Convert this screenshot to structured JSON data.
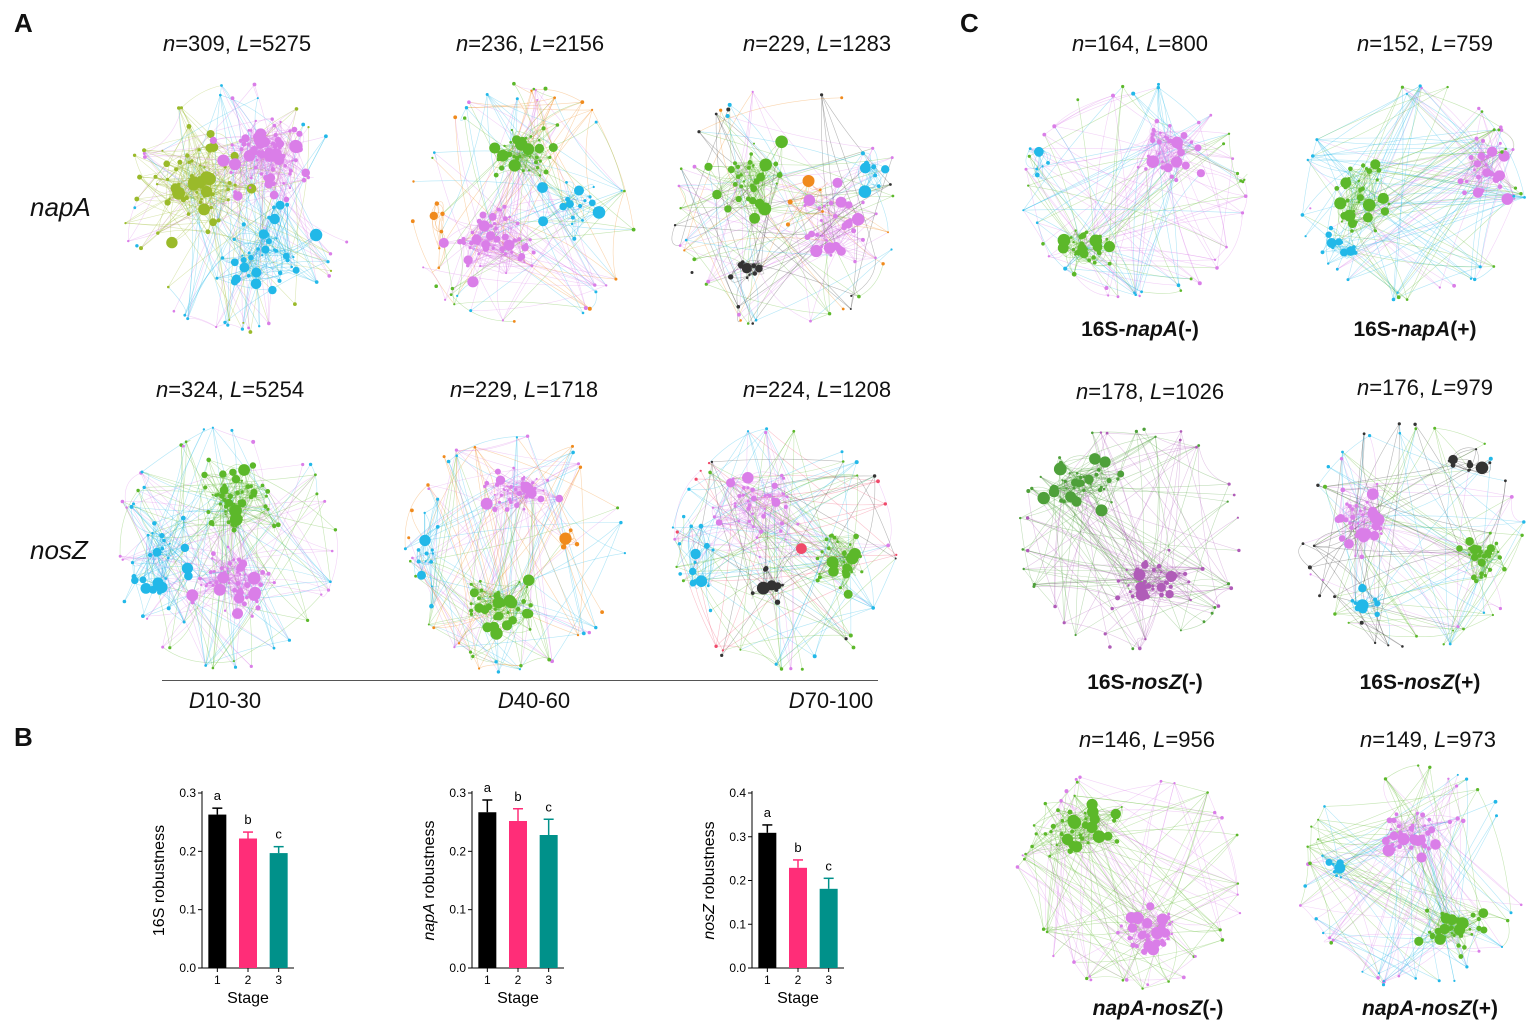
{
  "panels": {
    "a": "A",
    "b": "B",
    "c": "C"
  },
  "panel_a": {
    "row_labels": [
      "napA",
      "nosZ"
    ],
    "stage_labels": [
      {
        "d": "D",
        "rest": "10-30"
      },
      {
        "d": "D",
        "rest": "40-60"
      },
      {
        "d": "D",
        "rest": "70-100"
      }
    ],
    "networks": [
      {
        "n": "309",
        "L": "5275",
        "colors": [
          "#9aba2a",
          "#da7ee8",
          "#22b8e8"
        ]
      },
      {
        "n": "236",
        "L": "2156",
        "colors": [
          "#5cb82a",
          "#da7ee8",
          "#22b8e8",
          "#f08a1c"
        ]
      },
      {
        "n": "229",
        "L": "1283",
        "colors": [
          "#5cb82a",
          "#da7ee8",
          "#22b8e8",
          "#333333",
          "#f08a1c"
        ]
      },
      {
        "n": "324",
        "L": "5254",
        "colors": [
          "#5cb82a",
          "#da7ee8",
          "#22b8e8"
        ]
      },
      {
        "n": "229",
        "L": "1718",
        "colors": [
          "#da7ee8",
          "#5cb82a",
          "#22b8e8",
          "#f08a1c"
        ]
      },
      {
        "n": "224",
        "L": "1208",
        "colors": [
          "#da7ee8",
          "#5cb82a",
          "#22b8e8",
          "#333333",
          "#f04a6a"
        ]
      }
    ]
  },
  "panel_c": {
    "networks": [
      {
        "n": "164",
        "L": "800",
        "prefix": "16S-",
        "gene": "napA",
        "suffix": "(-)",
        "colors": [
          "#da7ee8",
          "#5cb82a",
          "#22b8e8"
        ]
      },
      {
        "n": "152",
        "L": "759",
        "prefix": "16S-",
        "gene": "napA",
        "suffix": "(+)",
        "colors": [
          "#5cb82a",
          "#da7ee8",
          "#22b8e8"
        ]
      },
      {
        "n": "178",
        "L": "1026",
        "prefix": "16S-",
        "gene": "nosZ",
        "suffix": "(-)",
        "colors": [
          "#4ea03a",
          "#b05cb8"
        ]
      },
      {
        "n": "176",
        "L": "979",
        "prefix": "16S-",
        "gene": "nosZ",
        "suffix": "(+)",
        "colors": [
          "#da7ee8",
          "#5cb82a",
          "#22b8e8",
          "#333333"
        ]
      },
      {
        "n": "146",
        "L": "956",
        "prefix": "",
        "gene": "napA-nosZ",
        "suffix": "(-)",
        "colors": [
          "#5cb82a",
          "#da7ee8"
        ]
      },
      {
        "n": "149",
        "L": "973",
        "prefix": "",
        "gene": "napA-nosZ",
        "suffix": "(+)",
        "colors": [
          "#da7ee8",
          "#5cb82a",
          "#22b8e8"
        ]
      }
    ]
  },
  "chart_data": [
    {
      "type": "bar",
      "ylabel_prefix": "16S",
      "ylabel_italic": "",
      "ylabel_suffix": " robustness",
      "xlabel": "Stage",
      "categories": [
        "1",
        "2",
        "3"
      ],
      "values": [
        0.263,
        0.222,
        0.197
      ],
      "errors": [
        0.011,
        0.011,
        0.011
      ],
      "letters": [
        "a",
        "b",
        "c"
      ],
      "colors": [
        "#000000",
        "#ff2d78",
        "#00918a"
      ],
      "ylim": [
        0,
        0.3
      ],
      "yticks": [
        "0.0",
        "0.1",
        "0.2",
        "0.3"
      ],
      "ytick_values": [
        0,
        0.1,
        0.2,
        0.3
      ]
    },
    {
      "type": "bar",
      "ylabel_prefix": "",
      "ylabel_italic": "napA",
      "ylabel_suffix": " robustness",
      "xlabel": "Stage",
      "categories": [
        "1",
        "2",
        "3"
      ],
      "values": [
        0.267,
        0.252,
        0.228
      ],
      "errors": [
        0.021,
        0.021,
        0.027
      ],
      "letters": [
        "a",
        "b",
        "c"
      ],
      "colors": [
        "#000000",
        "#ff2d78",
        "#00918a"
      ],
      "ylim": [
        0,
        0.3
      ],
      "yticks": [
        "0.0",
        "0.1",
        "0.2",
        "0.3"
      ],
      "ytick_values": [
        0,
        0.1,
        0.2,
        0.3
      ]
    },
    {
      "type": "bar",
      "ylabel_prefix": "",
      "ylabel_italic": "nosZ",
      "ylabel_suffix": " robustness",
      "xlabel": "Stage",
      "categories": [
        "1",
        "2",
        "3"
      ],
      "values": [
        0.309,
        0.229,
        0.181
      ],
      "errors": [
        0.018,
        0.018,
        0.024
      ],
      "letters": [
        "a",
        "b",
        "c"
      ],
      "colors": [
        "#000000",
        "#ff2d78",
        "#00918a"
      ],
      "ylim": [
        0,
        0.4
      ],
      "yticks": [
        "0.0",
        "0.1",
        "0.2",
        "0.3",
        "0.4"
      ],
      "ytick_values": [
        0,
        0.1,
        0.2,
        0.3,
        0.4
      ]
    }
  ]
}
